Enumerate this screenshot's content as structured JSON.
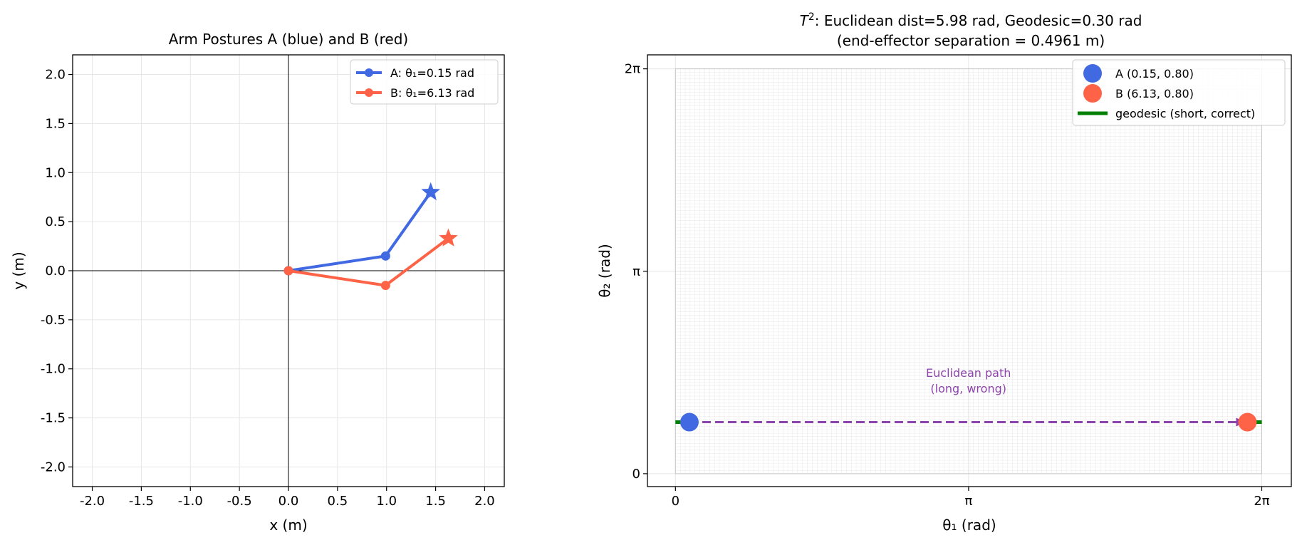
{
  "colors": {
    "a": "#4169e1",
    "b": "#ff6347",
    "geodesic": "#008000",
    "euclidean": "#8e44ad",
    "grid": "#e6e6e6",
    "axis": "#000000"
  },
  "chart_data": [
    {
      "type": "line",
      "title": "Arm Postures A (blue) and B (red)",
      "xlabel": "x (m)",
      "ylabel": "y (m)",
      "xlim": [
        -2.2,
        2.2
      ],
      "ylim": [
        -2.2,
        2.2
      ],
      "xticks": [
        -2.0,
        -1.5,
        -1.0,
        -0.5,
        0.0,
        0.5,
        1.0,
        1.5,
        2.0
      ],
      "xtick_labels": [
        "-2.0",
        "-1.5",
        "-1.0",
        "-0.5",
        "0.0",
        "0.5",
        "1.0",
        "1.5",
        "2.0"
      ],
      "yticks": [
        -2.0,
        -1.5,
        -1.0,
        -0.5,
        0.0,
        0.5,
        1.0,
        1.5,
        2.0
      ],
      "ytick_labels": [
        "-2.0",
        "-1.5",
        "-1.0",
        "-0.5",
        "0.0",
        "0.5",
        "1.0",
        "1.5",
        "2.0"
      ],
      "grid": true,
      "legend_position": "top-right",
      "series": [
        {
          "name": "A: θ₁=0.15 rad",
          "color_key": "a",
          "points": [
            [
              0.0,
              0.0
            ],
            [
              0.99,
              0.15
            ]
          ],
          "end_effector": [
            1.45,
            0.8
          ]
        },
        {
          "name": "B: θ₁=6.13 rad",
          "color_key": "b",
          "points": [
            [
              0.0,
              0.0
            ],
            [
              0.99,
              -0.15
            ]
          ],
          "end_effector": [
            1.63,
            0.33
          ]
        }
      ]
    },
    {
      "type": "scatter",
      "title_line1_prefix": "T",
      "title_line1_superscript": "2",
      "title_line1_rest": ": Euclidean dist=5.98 rad,  Geodesic=0.30 rad",
      "title_line2": "(end-effector separation = 0.4961 m)",
      "xlabel": "θ₁ (rad)",
      "ylabel": "θ₂ (rad)",
      "xlim": [
        -0.3,
        6.6
      ],
      "ylim": [
        -0.2,
        6.5
      ],
      "xticks": [
        0,
        3.14159,
        6.28318
      ],
      "xtick_labels": [
        "0",
        "π",
        "2π"
      ],
      "yticks": [
        0,
        3.14159,
        6.28318
      ],
      "ytick_labels": [
        "0",
        "π",
        "2π"
      ],
      "grid": true,
      "legend_position": "top-right",
      "points": [
        {
          "name": "A (0.15, 0.80)",
          "x": 0.15,
          "y": 0.8,
          "color_key": "a"
        },
        {
          "name": "B (6.13, 0.80)",
          "x": 6.13,
          "y": 0.8,
          "color_key": "b"
        }
      ],
      "geodesic": {
        "name": "geodesic (short, correct)",
        "segments": [
          [
            [
              0.0,
              0.8
            ],
            [
              0.15,
              0.8
            ]
          ],
          [
            [
              6.13,
              0.8
            ],
            [
              6.28318,
              0.8
            ]
          ]
        ]
      },
      "euclidean_path": {
        "from": [
          0.15,
          0.8
        ],
        "to": [
          6.13,
          0.8
        ],
        "label_line1": "Euclidean path",
        "label_line2": "(long, wrong)",
        "label_pos": [
          3.14,
          1.5
        ]
      }
    }
  ]
}
